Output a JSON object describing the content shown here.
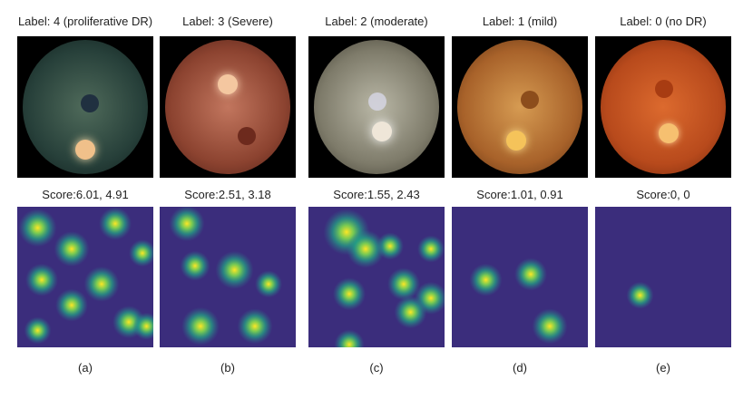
{
  "panels": [
    {
      "label": "Label:  4 (proliferative DR)",
      "score": "Score:6.01, 4.91",
      "caption": "(a)",
      "fundus_colors": [
        "#4f6a5a",
        "#27403a",
        "#0f1e1c"
      ],
      "blobs": [
        [
          0.15,
          0.15,
          0.14
        ],
        [
          0.72,
          0.12,
          0.12
        ],
        [
          0.4,
          0.3,
          0.13
        ],
        [
          0.92,
          0.33,
          0.1
        ],
        [
          0.18,
          0.52,
          0.12
        ],
        [
          0.62,
          0.55,
          0.13
        ],
        [
          0.4,
          0.7,
          0.12
        ],
        [
          0.82,
          0.82,
          0.12
        ],
        [
          0.95,
          0.85,
          0.1
        ],
        [
          0.15,
          0.88,
          0.1
        ]
      ]
    },
    {
      "label": "Label:  3 (Severe)",
      "score": "Score:2.51, 3.18",
      "caption": "(b)",
      "fundus_colors": [
        "#c2765e",
        "#8c4330",
        "#4d1e15"
      ],
      "blobs": [
        [
          0.2,
          0.12,
          0.13
        ],
        [
          0.26,
          0.42,
          0.11
        ],
        [
          0.55,
          0.45,
          0.14
        ],
        [
          0.8,
          0.55,
          0.1
        ],
        [
          0.3,
          0.85,
          0.14
        ],
        [
          0.7,
          0.85,
          0.13
        ]
      ]
    },
    {
      "label": "Label:  2 (moderate)",
      "score": "Score:1.55, 2.43",
      "caption": "(c)",
      "fundus_colors": [
        "#b9b7a6",
        "#7e7b6a",
        "#3d3a2f"
      ],
      "blobs": [
        [
          0.28,
          0.18,
          0.17
        ],
        [
          0.6,
          0.28,
          0.1
        ],
        [
          0.42,
          0.3,
          0.14
        ],
        [
          0.9,
          0.3,
          0.1
        ],
        [
          0.3,
          0.62,
          0.12
        ],
        [
          0.7,
          0.55,
          0.12
        ],
        [
          0.9,
          0.65,
          0.12
        ],
        [
          0.75,
          0.75,
          0.12
        ],
        [
          0.3,
          0.98,
          0.11
        ]
      ]
    },
    {
      "label": "Label:  1 (mild)",
      "score": "Score:1.01, 0.91",
      "caption": "(d)",
      "fundus_colors": [
        "#d69b52",
        "#a8622a",
        "#5a2f12"
      ],
      "blobs": [
        [
          0.58,
          0.48,
          0.12
        ],
        [
          0.25,
          0.52,
          0.12
        ],
        [
          0.72,
          0.85,
          0.13
        ]
      ]
    },
    {
      "label": "Label:  0 (no DR)",
      "score": "Score:0, 0",
      "caption": "(e)",
      "fundus_colors": [
        "#dc6a2e",
        "#b84a1c",
        "#6f250b"
      ],
      "blobs": [
        [
          0.33,
          0.63,
          0.1
        ]
      ]
    }
  ]
}
